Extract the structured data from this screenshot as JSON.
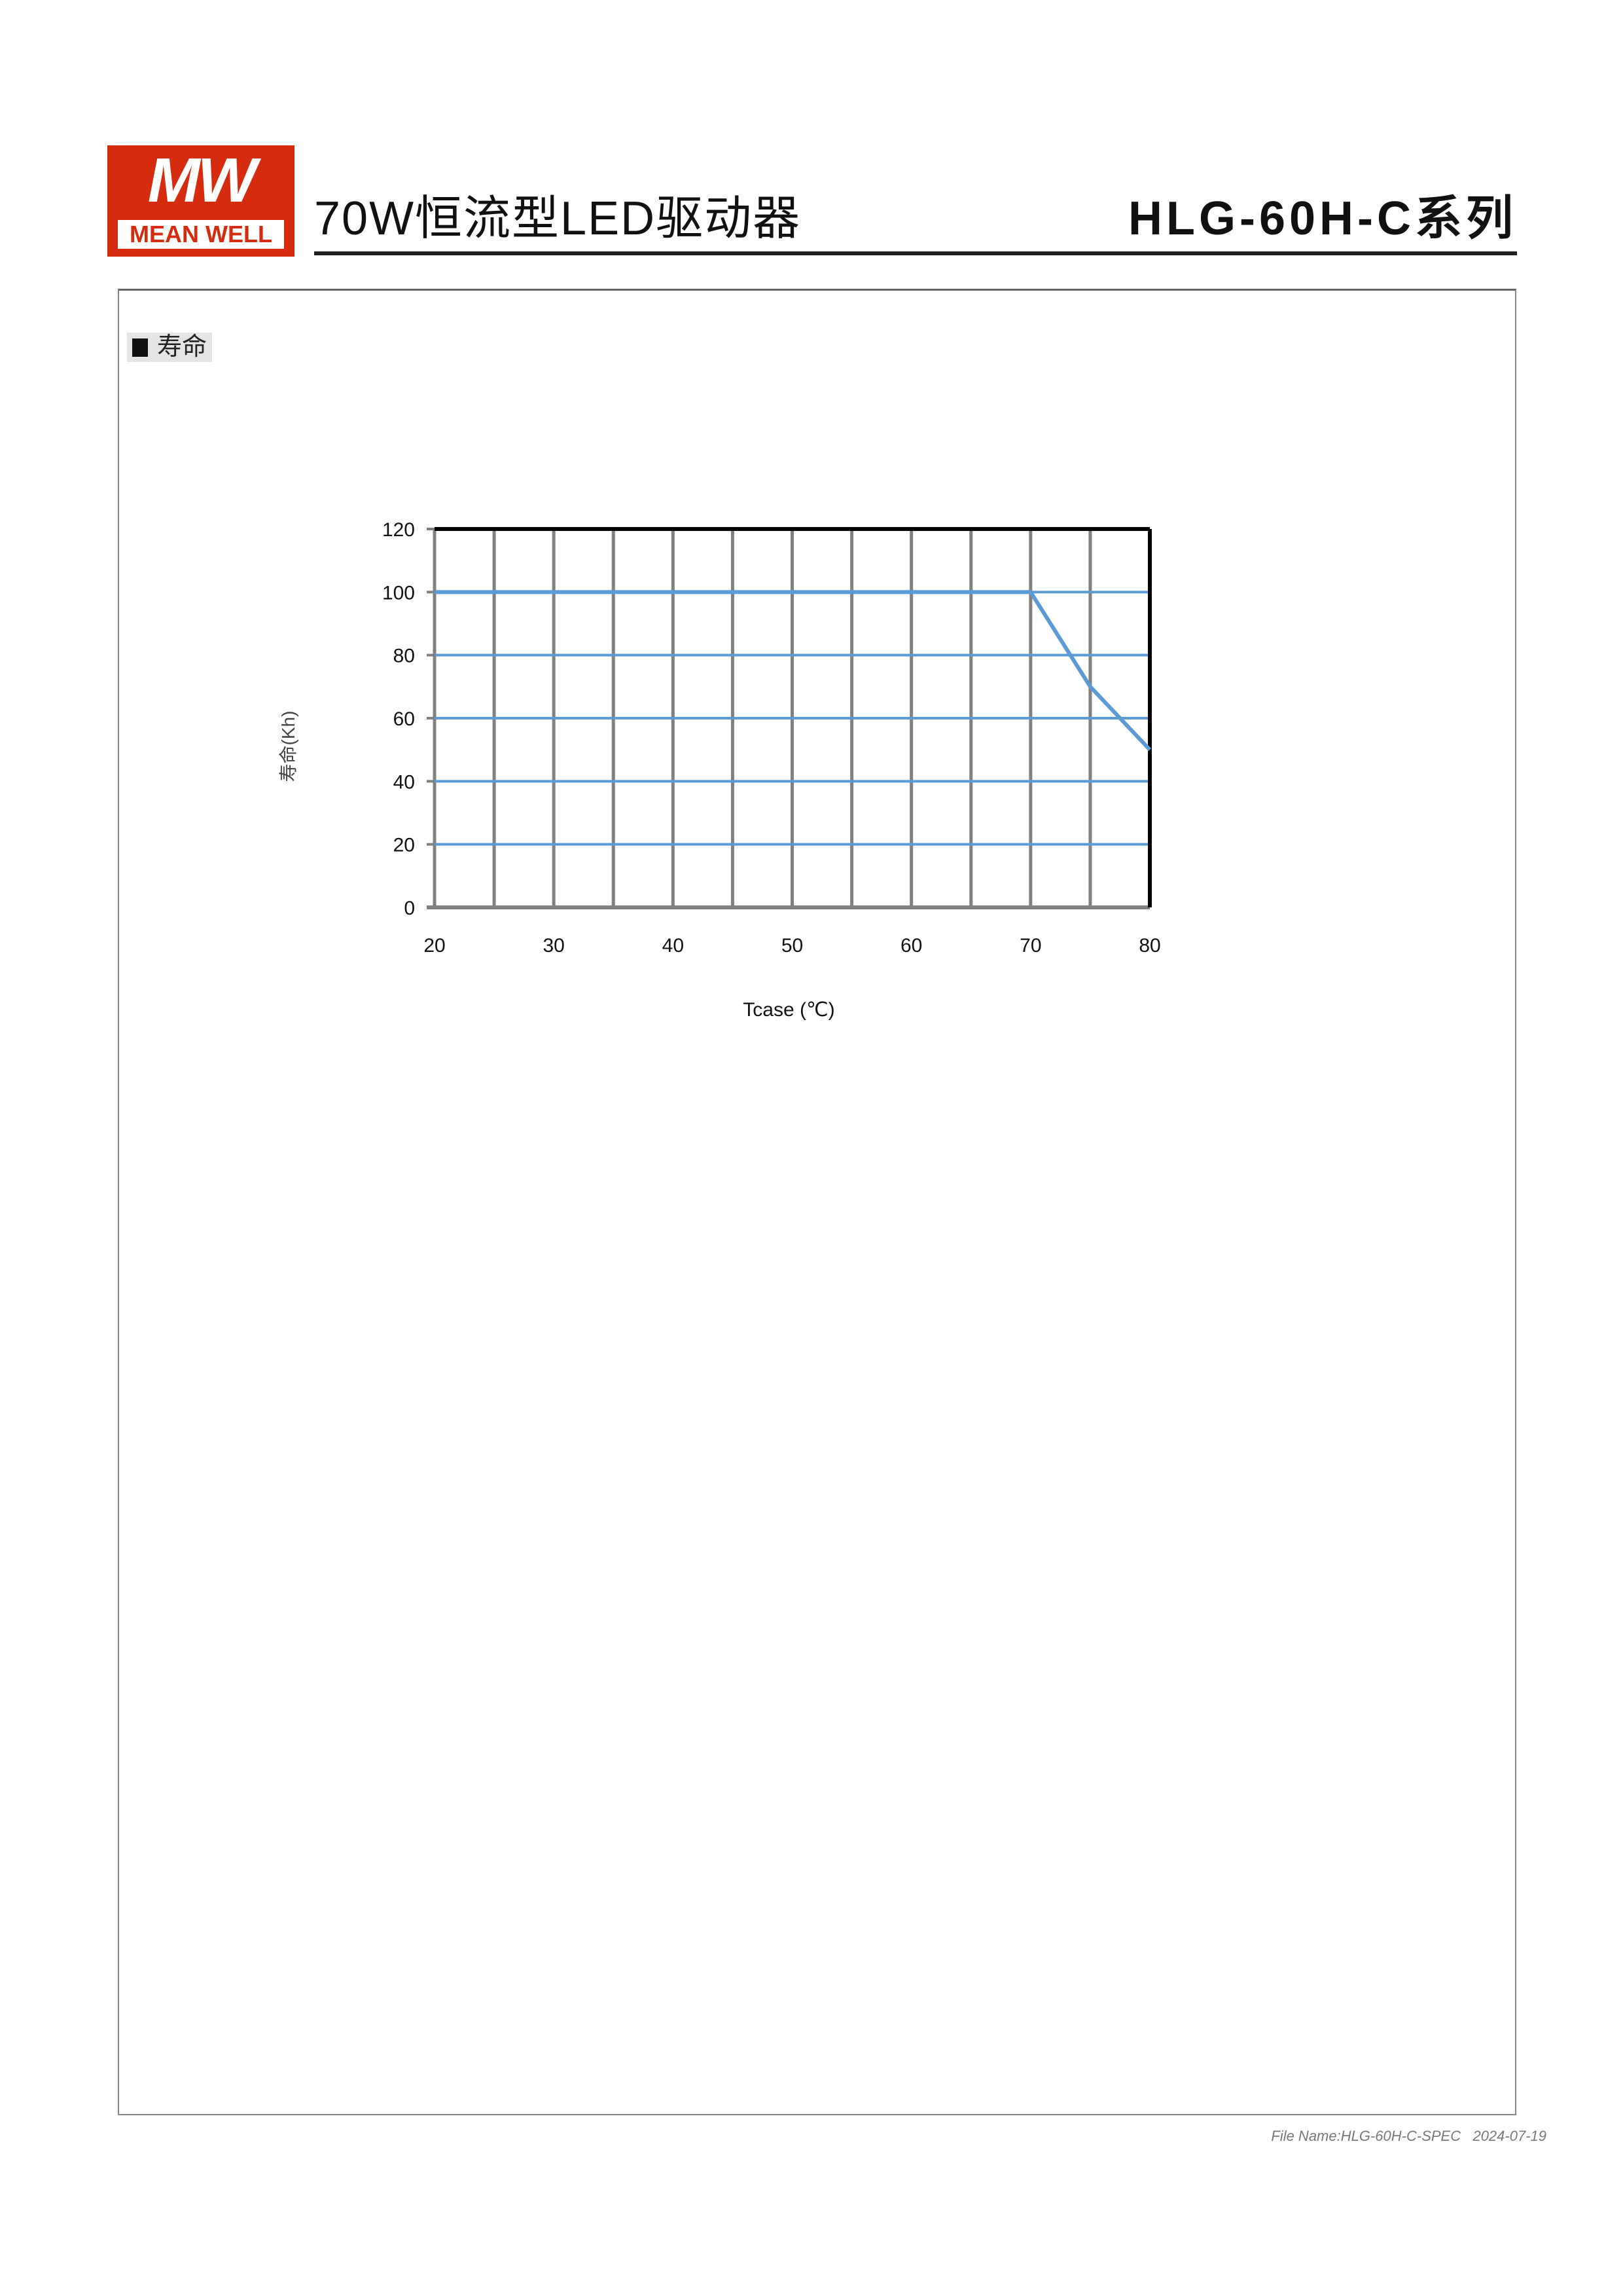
{
  "header": {
    "logo_text": "MEAN WELL",
    "title": "70W恒流型LED驱动器",
    "series": "HLG-60H-C系列"
  },
  "section": {
    "title": "寿命"
  },
  "footer": {
    "file": "File Name:HLG-60H-C-SPEC",
    "date": "2024-07-19"
  },
  "colors": {
    "brand": "#d52b0e",
    "line": "#5b9bd5",
    "grid_vertical": "#808080"
  },
  "chart_data": {
    "type": "line",
    "xlabel": "Tcase (℃)",
    "ylabel": "寿命(Kh)",
    "xlim": [
      20,
      80
    ],
    "ylim": [
      0,
      120
    ],
    "xticks": [
      20,
      30,
      40,
      50,
      60,
      70,
      80
    ],
    "yticks": [
      0,
      20,
      40,
      60,
      80,
      100,
      120
    ],
    "grid": true,
    "series": [
      {
        "x": [
          20,
          70,
          75,
          80
        ],
        "y": [
          100,
          100,
          70,
          50
        ]
      }
    ]
  }
}
